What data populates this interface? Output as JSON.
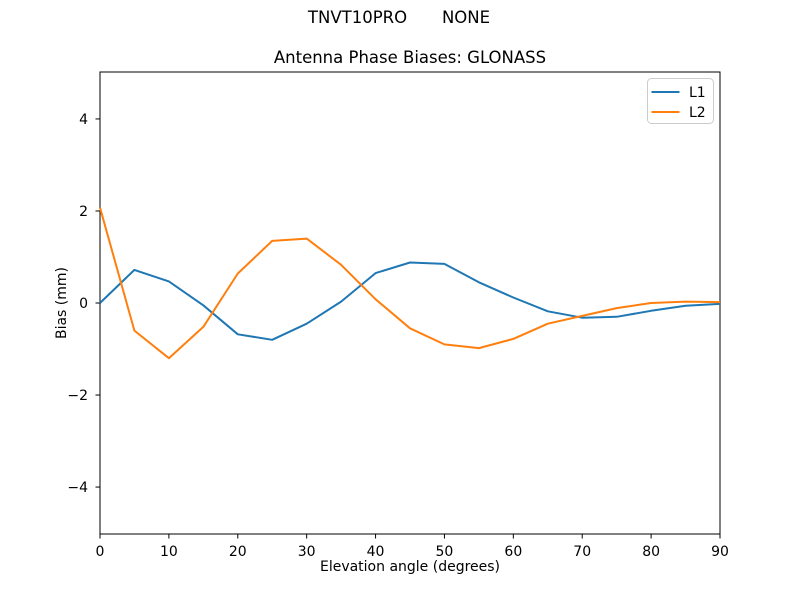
{
  "header": {
    "suptitle_left": "TNVT10PRO",
    "suptitle_right": "NONE"
  },
  "chart_data": {
    "type": "line",
    "title": "Antenna Phase Biases: GLONASS",
    "xlabel": "Elevation angle (degrees)",
    "ylabel": "Bias (mm)",
    "xlim": [
      0,
      90
    ],
    "ylim": [
      -5.02,
      5.02
    ],
    "xticks": [
      0,
      10,
      20,
      30,
      40,
      50,
      60,
      70,
      80,
      90
    ],
    "xtick_labels": [
      "0",
      "10",
      "20",
      "30",
      "40",
      "50",
      "60",
      "70",
      "80",
      "90"
    ],
    "yticks": [
      -4,
      -2,
      0,
      2,
      4
    ],
    "ytick_labels": [
      "−4",
      "−2",
      "0",
      "2",
      "4"
    ],
    "grid": false,
    "legend_position": "upper right",
    "x": [
      0,
      5,
      10,
      15,
      20,
      25,
      30,
      35,
      40,
      45,
      50,
      55,
      60,
      65,
      70,
      75,
      80,
      85,
      90
    ],
    "series": [
      {
        "name": "L1",
        "color": "#1f77b4",
        "values": [
          0.0,
          0.72,
          0.47,
          -0.05,
          -0.68,
          -0.8,
          -0.45,
          0.03,
          0.65,
          0.88,
          0.85,
          0.45,
          0.12,
          -0.18,
          -0.32,
          -0.3,
          -0.17,
          -0.06,
          -0.02
        ]
      },
      {
        "name": "L2",
        "color": "#ff7f0e",
        "values": [
          2.07,
          -0.6,
          -1.2,
          -0.52,
          0.64,
          1.35,
          1.4,
          0.83,
          0.08,
          -0.55,
          -0.9,
          -0.98,
          -0.78,
          -0.45,
          -0.28,
          -0.11,
          0.0,
          0.03,
          0.02
        ]
      }
    ]
  }
}
